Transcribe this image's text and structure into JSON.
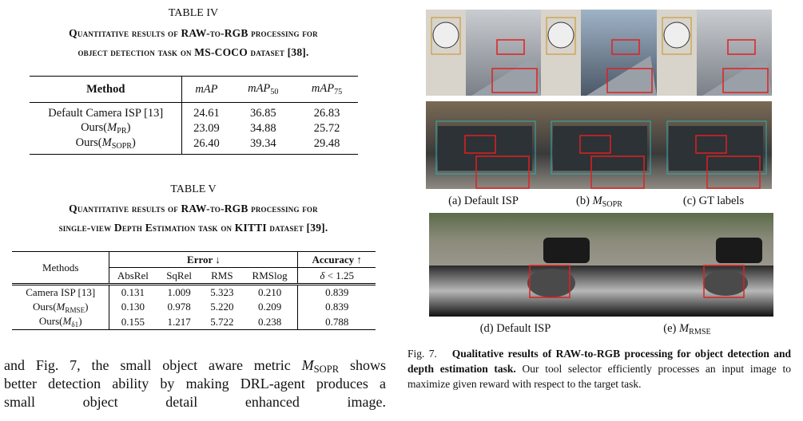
{
  "table_iv": {
    "label": "TABLE IV",
    "caption": [
      "Quantitative results of RAW-to-RGB processing for",
      "object detection task on MS-COCO dataset [38]."
    ],
    "header": {
      "method": "Method",
      "cols": [
        {
          "math": "mAP"
        },
        {
          "math": "mAP",
          "sub": "50"
        },
        {
          "math": "mAP",
          "sub": "75"
        }
      ]
    },
    "rows": [
      {
        "name": {
          "text": "Default Camera ISP [13]"
        },
        "cells": [
          "24.61",
          "36.85",
          "26.83"
        ]
      },
      {
        "name": {
          "text": "Ours(",
          "math": "M",
          "sub": "PR",
          "end": ")"
        },
        "cells": [
          "23.09",
          "34.88",
          "25.72"
        ]
      },
      {
        "name": {
          "text": "Ours(",
          "math": "M",
          "sub": "SOPR",
          "end": ")"
        },
        "cells": [
          "26.40",
          "39.34",
          "29.48"
        ]
      }
    ],
    "bold_row": 2
  },
  "table_v": {
    "label": "TABLE V",
    "caption": [
      "Quantitative results of RAW-to-RGB processing for",
      "single-view Depth Estimation task on KITTI dataset [39]."
    ],
    "header": {
      "method": "Methods",
      "groups": [
        {
          "text": "Error ↓"
        },
        {
          "text": "Accuracy ↑"
        }
      ],
      "cols": [
        {
          "text": "AbsRel"
        },
        {
          "text": "SqRel"
        },
        {
          "text": "RMS"
        },
        {
          "text": "RMSlog"
        },
        {
          "math": "δ",
          "end": " < 1.25"
        }
      ]
    },
    "rows": [
      {
        "name": {
          "text": "Camera ISP [13]"
        },
        "cells": [
          "0.131",
          "1.009",
          "5.323",
          "0.210",
          "0.839"
        ]
      },
      {
        "name": {
          "text": "Ours(",
          "math": "M",
          "sub": "RMSE",
          "end": ")"
        },
        "cells": [
          "0.130",
          "0.978",
          "5.220",
          "0.209",
          "0.839"
        ]
      },
      {
        "name": {
          "text": "Ours(",
          "math": "M",
          "sub": "δ1",
          "end": ")"
        },
        "cells": [
          "0.155",
          "1.217",
          "5.722",
          "0.238",
          "0.788"
        ]
      }
    ],
    "bold_row": 1
  },
  "body": [
    {
      "text": "and Fig. 7, the small object aware metric ",
      "math": "M",
      "sub": "SOPR",
      "end": " shows"
    },
    {
      "text": "better detection ability by making DRL-agent produces a"
    },
    {
      "text": "small object detail enhanced image."
    }
  ],
  "figure": {
    "subcaptions": [
      {
        "text": "(a) Default ISP"
      },
      {
        "text": "(b) ",
        "math": "M",
        "sub": "SOPR"
      },
      {
        "text": "(c) GT labels"
      },
      {
        "text": "(d) Default ISP"
      },
      {
        "text": "(e) ",
        "math": "M",
        "sub": "RMSE"
      }
    ],
    "caption": {
      "label": "Fig. 7.",
      "bold": "Qualitative results of RAW-to-RGB processing for object detection and depth estimation task.",
      "text": "Our tool selector efficiently processes an input image to maximize given reward with respect to the target task."
    }
  }
}
